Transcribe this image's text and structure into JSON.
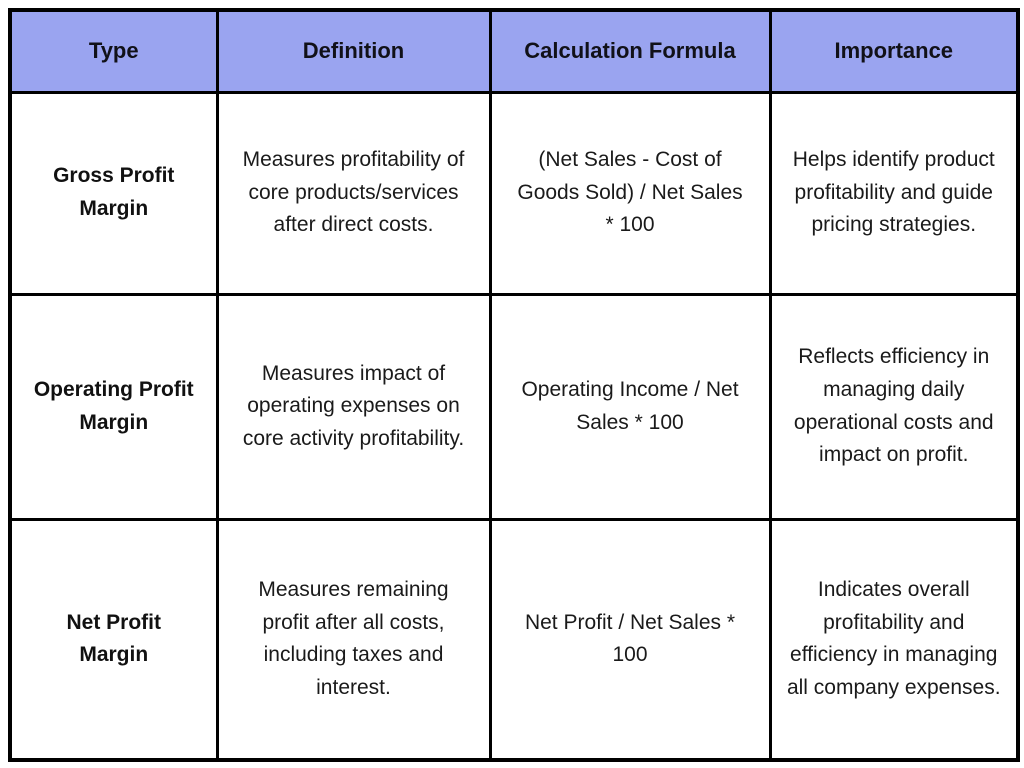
{
  "chart_data": {
    "type": "table",
    "columns": [
      "Type",
      "Definition",
      "Calculation Formula",
      "Importance"
    ],
    "rows": [
      [
        "Gross Profit Margin",
        "Measures profitability of core products/services after direct costs.",
        "(Net Sales - Cost of Goods Sold) / Net Sales * 100",
        "Helps identify product profitability and guide pricing strategies."
      ],
      [
        "Operating Profit Margin",
        "Measures impact of operating expenses on core activity profitability.",
        "Operating Income / Net Sales * 100",
        "Reflects efficiency in managing daily operational costs and impact on profit."
      ],
      [
        "Net Profit Margin",
        "Measures remaining profit after all costs, including taxes and interest.",
        "Net Profit / Net Sales * 100",
        "Indicates overall profitability and efficiency in managing all company expenses."
      ]
    ],
    "layout": {
      "grid": "on",
      "header_row": true
    }
  },
  "colors": {
    "header_background": "#9aa4f0",
    "grid_border": "#000000",
    "text": "#1a1a1a",
    "page_background": "#ffffff"
  }
}
